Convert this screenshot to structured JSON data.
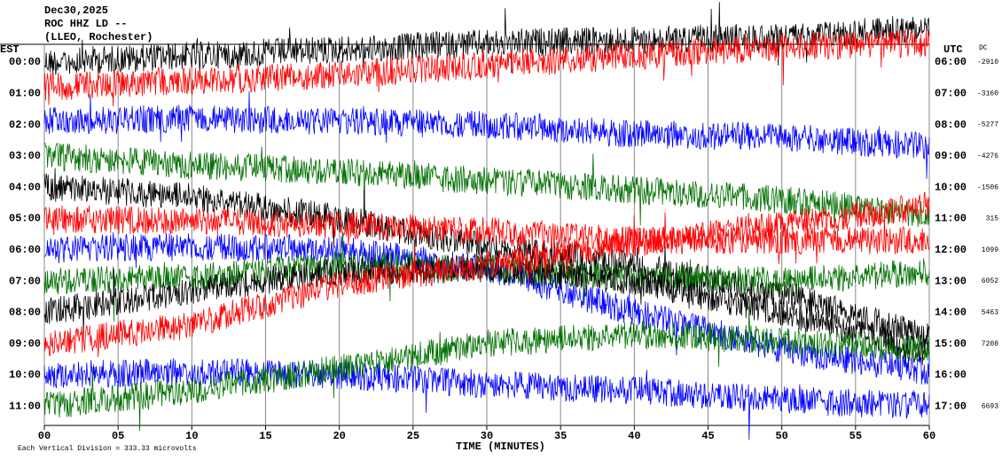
{
  "chart_data": {
    "type": "helicorder",
    "date": "Dec30,2025",
    "station": "ROC HHZ LD --",
    "location": "(LLEO, Rochester)",
    "left_axis_label": "EST",
    "right_axis_label": "UTC",
    "dc_label": "DC",
    "xlabel": "TIME (MINUTES)",
    "footnote": "Each Vertical Division =  333.33 microvolts",
    "xlim": [
      0,
      60
    ],
    "xticks": [
      {
        "value": 0,
        "label": "00"
      },
      {
        "value": 5,
        "label": "05"
      },
      10,
      15,
      20,
      25,
      30,
      35,
      40,
      45,
      50,
      55,
      60
    ],
    "grid": true,
    "drift_minutes": [
      0,
      10,
      20,
      30,
      40,
      50,
      60
    ],
    "rows": [
      {
        "est": "00:00",
        "utc": "06:00",
        "dc": -2910,
        "color": "#000000",
        "drift": [
          0,
          0.2,
          0.4,
          0.6,
          0.7,
          0.8,
          1.1
        ]
      },
      {
        "est": "01:00",
        "utc": "07:00",
        "dc": -3160,
        "color": "#ff0000",
        "drift": [
          0.2,
          0.4,
          0.6,
          0.9,
          1.2,
          1.5,
          1.6
        ]
      },
      {
        "est": "02:00",
        "utc": "08:00",
        "dc": -5277,
        "color": "#0000ff",
        "drift": [
          0.1,
          0.2,
          0.1,
          0,
          -0.3,
          -0.4,
          -0.7
        ]
      },
      {
        "est": "03:00",
        "utc": "09:00",
        "dc": -4276,
        "color": "#007000",
        "drift": [
          0,
          -0.3,
          -0.5,
          -0.8,
          -1.1,
          -1.4,
          -1.9
        ]
      },
      {
        "est": "04:00",
        "utc": "10:00",
        "dc": -1506,
        "color": "#000000",
        "drift": [
          0,
          -0.3,
          -1,
          -1.9,
          -2.5,
          -3.4,
          -4.8
        ]
      },
      {
        "est": "05:00",
        "utc": "11:00",
        "dc": 315,
        "color": "#ff0000",
        "drift": [
          0,
          -0.1,
          -0.2,
          -0.4,
          -0.7,
          -0.7,
          -0.7
        ]
      },
      {
        "est": "06:00",
        "utc": "12:00",
        "dc": 1099,
        "color": "#0000ff",
        "drift": [
          0,
          0.1,
          0,
          -0.6,
          -2,
          -3.2,
          -3.9
        ]
      },
      {
        "est": "07:00",
        "utc": "13:00",
        "dc": 6052,
        "color": "#007000",
        "drift": [
          0,
          0.1,
          0.5,
          0.4,
          0.1,
          0,
          0.3
        ]
      },
      {
        "est": "08:00",
        "utc": "14:00",
        "dc": 5463,
        "color": "#000000",
        "drift": [
          0,
          0.7,
          1.3,
          1.4,
          1,
          0,
          -1.3
        ]
      },
      {
        "est": "09:00",
        "utc": "15:00",
        "dc": 7208,
        "color": "#ff0000",
        "drift": [
          0,
          0.6,
          1.9,
          2.5,
          3.2,
          3.8,
          4.4
        ]
      },
      {
        "est": "10:00",
        "utc": "16:00",
        "dc": null,
        "color": "#0000ff",
        "drift": [
          0,
          0.1,
          0,
          -0.3,
          -0.5,
          -0.8,
          -1
        ]
      },
      {
        "est": "11:00",
        "utc": "17:00",
        "dc": 6693,
        "color": "#007000",
        "drift": [
          0,
          0.5,
          1.2,
          2,
          2.3,
          2.1,
          1.8
        ]
      }
    ]
  }
}
